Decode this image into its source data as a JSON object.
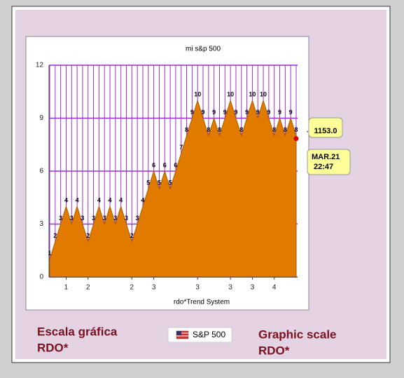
{
  "chart_data": {
    "type": "area",
    "title": "mi s&p 500",
    "x_label": "rdo*Trend System",
    "categories": [
      null,
      null,
      null,
      "1",
      null,
      null,
      null,
      "2",
      null,
      null,
      null,
      null,
      null,
      null,
      null,
      "2",
      null,
      null,
      null,
      "3",
      null,
      null,
      null,
      null,
      null,
      null,
      null,
      "3",
      null,
      null,
      null,
      null,
      null,
      "3",
      null,
      null,
      null,
      "3",
      null,
      null,
      null,
      "4",
      null,
      null,
      null,
      null
    ],
    "values": [
      1,
      2,
      3,
      4,
      3,
      4,
      3,
      2,
      3,
      4,
      3,
      4,
      3,
      4,
      3,
      2,
      3,
      4,
      5,
      6,
      5,
      6,
      5,
      6,
      7,
      8,
      9,
      10,
      9,
      8,
      9,
      8,
      9,
      10,
      9,
      8,
      9,
      10,
      9,
      10,
      9,
      8,
      9,
      8,
      9,
      8
    ],
    "color": "#e07b00",
    "grid_color": "#9b30d9",
    "ylim": [
      0,
      12
    ],
    "yticks": [
      0,
      3,
      6,
      9,
      12
    ],
    "grid": true,
    "annotations": {
      "price": "1153.0",
      "date": "MAR.21",
      "time": "22:47"
    }
  },
  "footer": {
    "left": [
      "Escala gráfica",
      "RDO*"
    ],
    "badge": "S&P 500",
    "right": [
      "Graphic scale",
      "RDO*"
    ]
  }
}
